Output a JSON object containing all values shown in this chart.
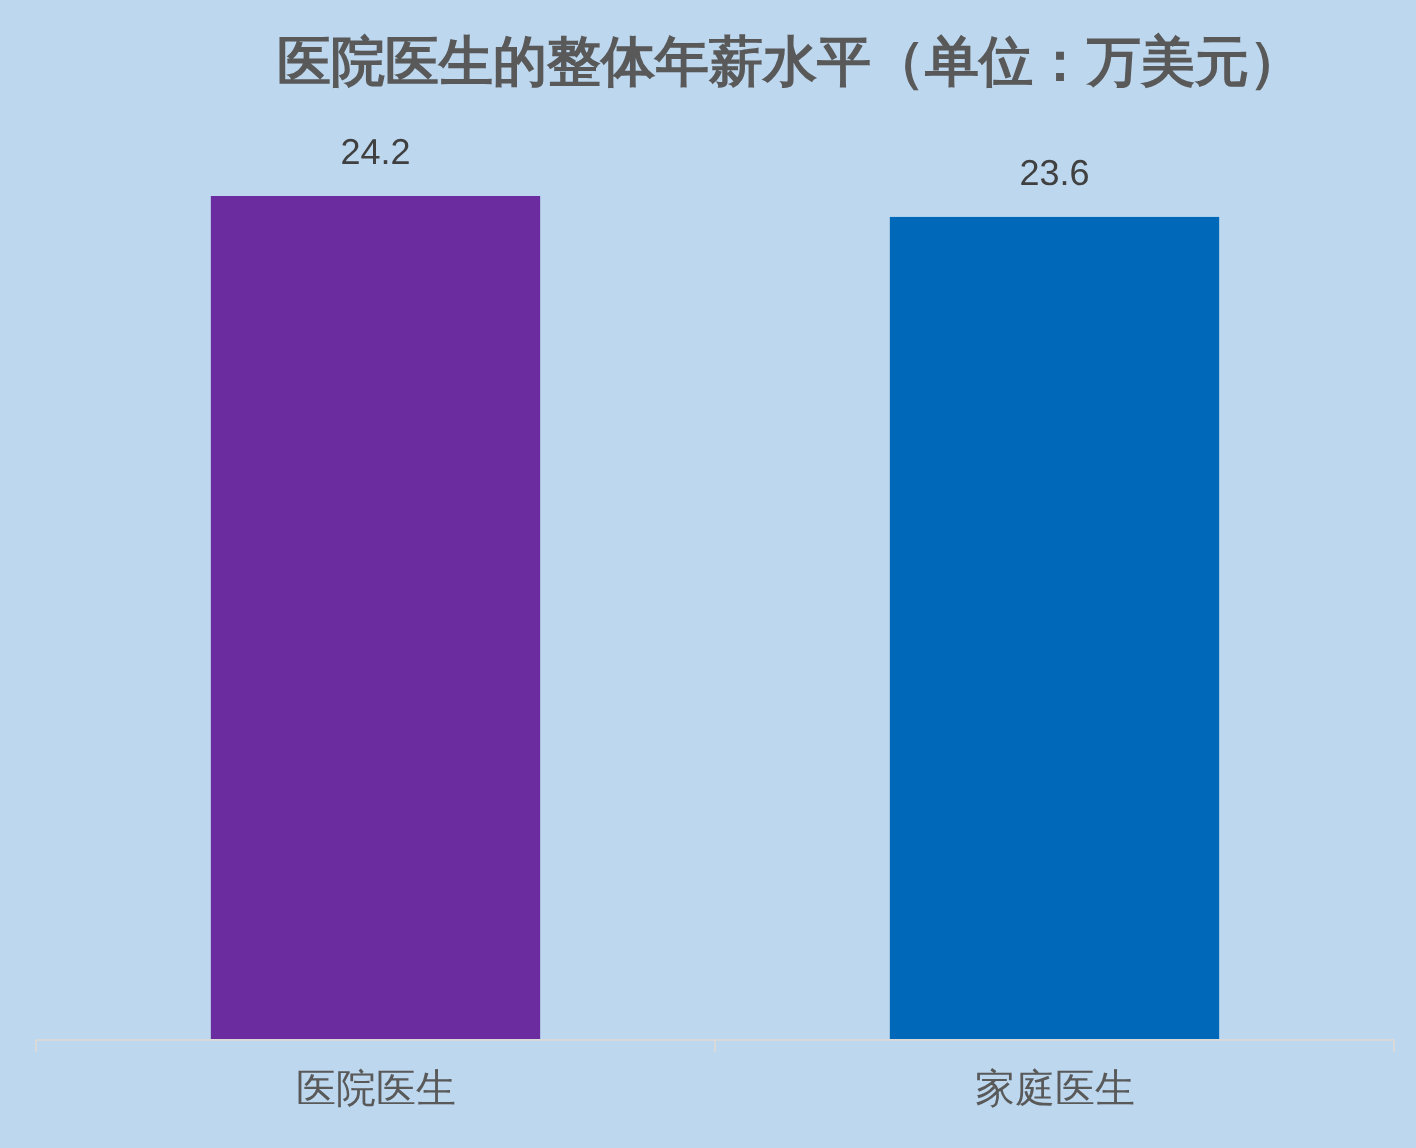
{
  "chart_data": {
    "type": "bar",
    "title": "医院医生的整体年薪水平（单位：万美元）",
    "categories": [
      "医院医生",
      "家庭医生"
    ],
    "values": [
      24.2,
      23.6
    ],
    "colors": [
      "#6a2c9e",
      "#0068b8"
    ],
    "tick_labels": "x",
    "data_labels": true
  }
}
